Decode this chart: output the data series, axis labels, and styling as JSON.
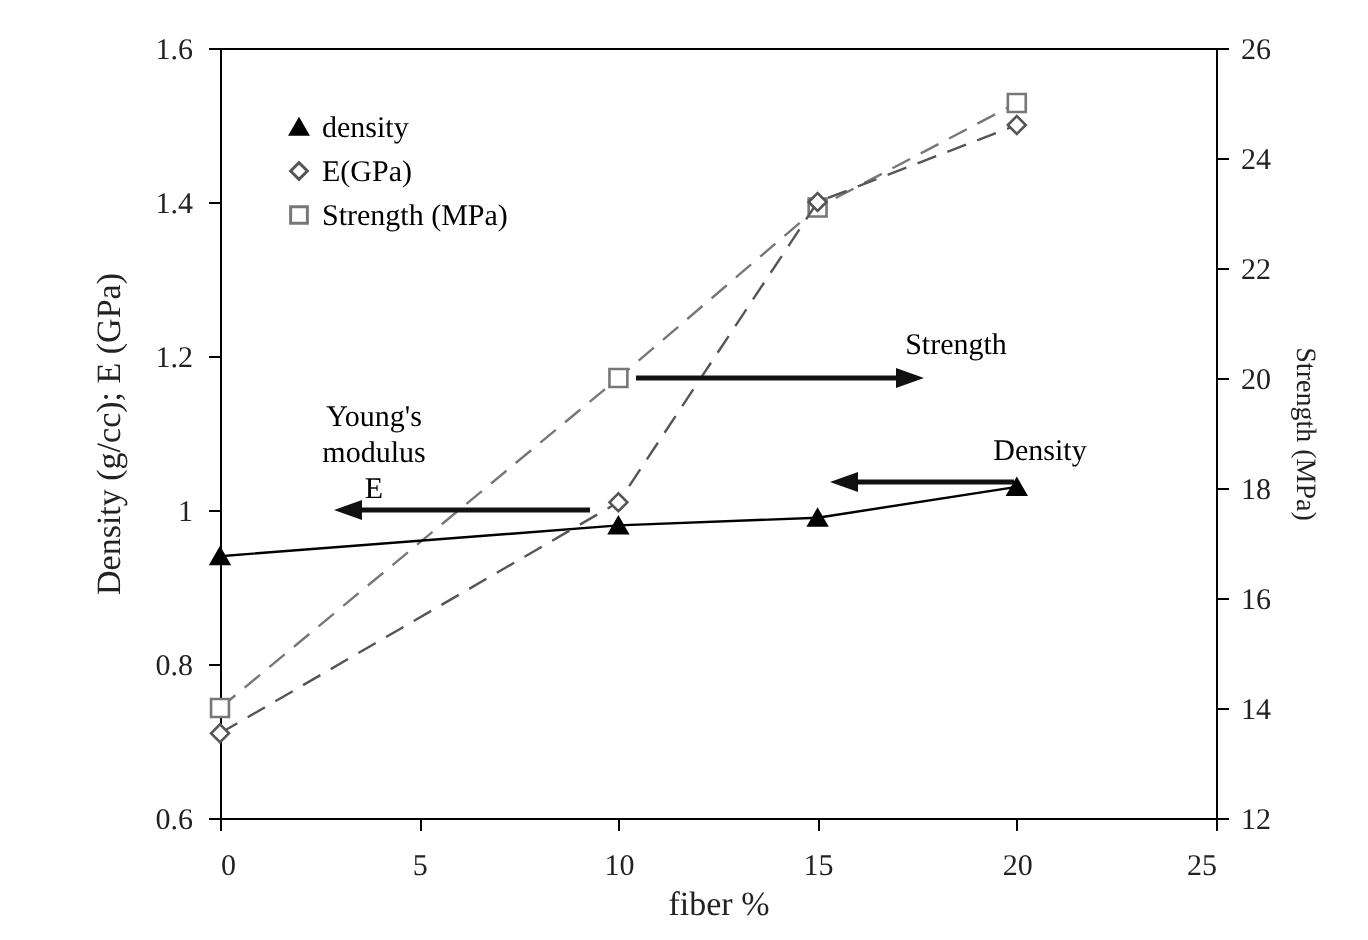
{
  "chart_data": {
    "type": "line",
    "xlabel": "fiber %",
    "ylabel": "Density (g/cc); E (GPa)",
    "y2label": "Strength (MPa)",
    "x": [
      0,
      10,
      15,
      20
    ],
    "xlim": [
      0,
      25
    ],
    "xticks": [
      0,
      5,
      10,
      15,
      20,
      25
    ],
    "ylim": [
      0.6,
      1.6
    ],
    "yticks": [
      0.6,
      0.8,
      1,
      1.2,
      1.4,
      1.6
    ],
    "y2lim": [
      12,
      26
    ],
    "y2ticks": [
      12,
      14,
      16,
      18,
      20,
      22,
      24,
      26
    ],
    "legend": "top left",
    "series": [
      {
        "name": "density",
        "color": "#000000",
        "values": [
          0.94,
          0.98,
          0.99,
          1.03
        ],
        "marker": "triangle",
        "line_style": "solid"
      },
      {
        "name": "E(GPa)",
        "color": "#555555",
        "values": [
          0.71,
          1.01,
          1.4,
          1.5
        ],
        "marker": "diamond",
        "line_style": "dashed"
      },
      {
        "name": "Strength (MPa)",
        "color": "#777777",
        "values": [
          14,
          20,
          23.1,
          25
        ],
        "marker": "square",
        "line_style": "dashed",
        "axis": "y2"
      }
    ],
    "annotations": [
      "Young's modulus E",
      "Strength",
      "Density"
    ]
  }
}
